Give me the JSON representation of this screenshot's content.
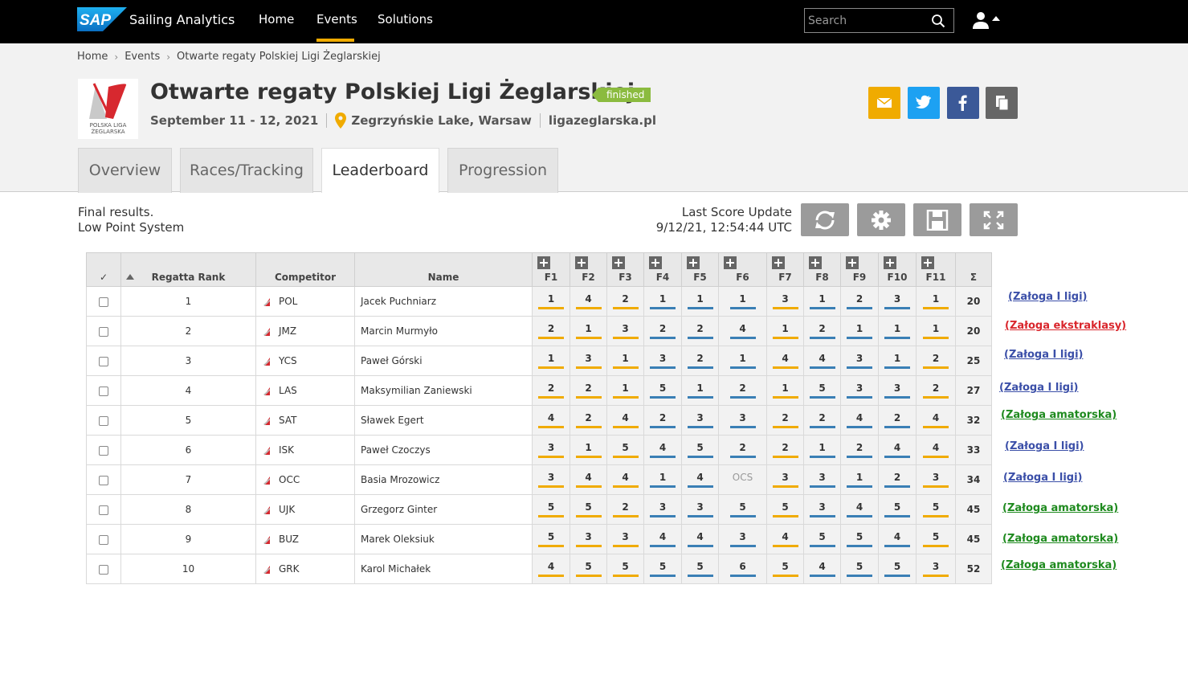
{
  "topbar": {
    "brand": "Sailing Analytics",
    "nav": [
      "Home",
      "Events",
      "Solutions"
    ],
    "search_placeholder": "Search"
  },
  "breadcrumb": [
    "Home",
    "Events",
    "Otwarte regaty Polskiej Ligi Żeglarskiej"
  ],
  "event": {
    "title": "Otwarte regaty Polskiej Ligi Żeglarskiej",
    "status": "finished",
    "dates": "September 11 - 12, 2021",
    "location": "Zegrzyńskie Lake, Warsaw",
    "website": "ligazeglarska.pl",
    "logo_text": "POLSKA LIGA ŻEGLARSKA"
  },
  "tabs": [
    "Overview",
    "Races/Tracking",
    "Leaderboard",
    "Progression"
  ],
  "info": {
    "line1": "Final results.",
    "line2": "Low Point System",
    "update_label": "Last Score Update",
    "update_time": "9/12/21, 12:54:44 UTC"
  },
  "table": {
    "headers": {
      "check": "✓",
      "rank": "Regatta Rank",
      "competitor": "Competitor",
      "name": "Name",
      "races": [
        "F1",
        "F2",
        "F3",
        "F4",
        "F5",
        "F6",
        "F7",
        "F8",
        "F9",
        "F10",
        "F11"
      ],
      "total": "Σ"
    },
    "rows": [
      {
        "rank": "1",
        "competitor": "POL",
        "name": "Jacek Puchniarz",
        "races": [
          "1",
          "4",
          "2",
          "1",
          "1",
          "1",
          "3",
          "1",
          "2",
          "3",
          "1"
        ],
        "total": "20",
        "crew": "(Załoga I ligi)",
        "crew_color": "#3b4fa8"
      },
      {
        "rank": "2",
        "competitor": "JMZ",
        "name": "Marcin Murmyło",
        "races": [
          "2",
          "1",
          "3",
          "2",
          "2",
          "4",
          "1",
          "2",
          "1",
          "1",
          "1"
        ],
        "total": "20",
        "crew": "(Załoga ekstraklasy)",
        "crew_color": "#d9262c"
      },
      {
        "rank": "3",
        "competitor": "YCS",
        "name": "Paweł Górski",
        "races": [
          "1",
          "3",
          "1",
          "3",
          "2",
          "1",
          "4",
          "4",
          "3",
          "1",
          "2"
        ],
        "total": "25",
        "crew": "(Załoga I ligi)",
        "crew_color": "#3b4fa8"
      },
      {
        "rank": "4",
        "competitor": "LAS",
        "name": "Maksymilian Zaniewski",
        "races": [
          "2",
          "2",
          "1",
          "5",
          "1",
          "2",
          "1",
          "5",
          "3",
          "3",
          "2"
        ],
        "total": "27",
        "crew": "(Załoga I ligi)",
        "crew_color": "#3b4fa8"
      },
      {
        "rank": "5",
        "competitor": "SAT",
        "name": "Sławek Egert",
        "races": [
          "4",
          "2",
          "4",
          "2",
          "3",
          "3",
          "2",
          "2",
          "4",
          "2",
          "4"
        ],
        "total": "32",
        "crew": "(Załoga amatorska)",
        "crew_color": "#1e8a1e"
      },
      {
        "rank": "6",
        "competitor": "ISK",
        "name": "Paweł Czoczys",
        "races": [
          "3",
          "1",
          "5",
          "4",
          "5",
          "2",
          "2",
          "1",
          "2",
          "4",
          "4"
        ],
        "total": "33",
        "crew": "(Załoga I ligi)",
        "crew_color": "#3b4fa8"
      },
      {
        "rank": "7",
        "competitor": "OCC",
        "name": "Basia Mrozowicz",
        "races": [
          "3",
          "4",
          "4",
          "1",
          "4",
          "OCS",
          "3",
          "3",
          "1",
          "2",
          "3"
        ],
        "total": "34",
        "crew": "(Załoga I ligi)",
        "crew_color": "#3b4fa8"
      },
      {
        "rank": "8",
        "competitor": "UJK",
        "name": "Grzegorz Ginter",
        "races": [
          "5",
          "5",
          "2",
          "3",
          "3",
          "5",
          "5",
          "3",
          "4",
          "5",
          "5"
        ],
        "total": "45",
        "crew": "(Załoga amatorska)",
        "crew_color": "#1e8a1e"
      },
      {
        "rank": "9",
        "competitor": "BUZ",
        "name": "Marek Oleksiuk",
        "races": [
          "5",
          "3",
          "3",
          "4",
          "4",
          "3",
          "4",
          "5",
          "5",
          "4",
          "5"
        ],
        "total": "45",
        "crew": "(Załoga amatorska)",
        "crew_color": "#1e8a1e"
      },
      {
        "rank": "10",
        "competitor": "GRK",
        "name": "Karol Michałek",
        "races": [
          "4",
          "5",
          "5",
          "5",
          "5",
          "6",
          "5",
          "4",
          "5",
          "5",
          "3"
        ],
        "total": "52",
        "crew": "(Załoga amatorska)",
        "crew_color": "#1e8a1e"
      }
    ],
    "race_underline_colors": [
      "yellow",
      "yellow",
      "yellow",
      "blue",
      "blue",
      "blue",
      "yellow",
      "blue",
      "blue",
      "blue",
      "yellow"
    ]
  },
  "colors": {
    "topbar_bg": "#000000",
    "accent": "#f0ab00",
    "status_green": "#8bbb3f",
    "race_yellow": "#f0ab00",
    "race_blue": "#3a7fb5"
  }
}
